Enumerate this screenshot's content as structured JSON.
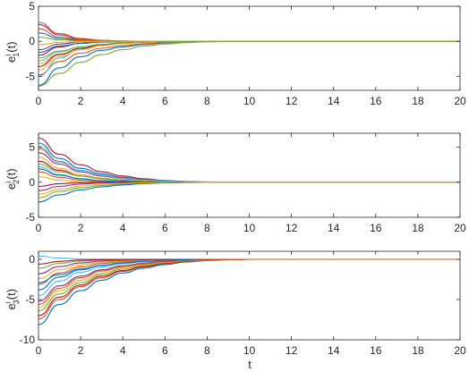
{
  "chart_data": [
    {
      "type": "line",
      "ylabel": {
        "base": "e",
        "sup": "i",
        "sub": "1",
        "arg": "(t)"
      },
      "xlim": [
        0,
        20
      ],
      "ylim": [
        -7,
        5
      ],
      "xticks": [
        "0",
        "2",
        "4",
        "6",
        "8",
        "10",
        "12",
        "14",
        "16",
        "18",
        "20"
      ],
      "yticks": [
        {
          "v": -5,
          "label": "-5"
        },
        {
          "v": 0,
          "label": "0"
        },
        {
          "v": 5,
          "label": "5"
        }
      ],
      "series": [
        {
          "color": "#0072BD",
          "values": [
            -6.3,
            -3.8,
            -2.2,
            -1.3,
            -0.8,
            -0.45,
            -0.25,
            -0.12,
            -0.05,
            -0.02,
            0,
            0
          ]
        },
        {
          "color": "#D95319",
          "values": [
            -4.8,
            -2.9,
            -1.7,
            -1.0,
            -0.6,
            -0.35,
            -0.2,
            -0.1,
            -0.04,
            -0.01,
            0,
            0
          ]
        },
        {
          "color": "#EDB120",
          "values": [
            -3.2,
            -1.8,
            -1.0,
            -0.55,
            -0.3,
            -0.15,
            -0.07,
            -0.03,
            -0.01,
            0,
            0,
            0
          ]
        },
        {
          "color": "#7E2F8E",
          "values": [
            2.4,
            0.9,
            0.3,
            0.1,
            0.03,
            0.01,
            0,
            0,
            0,
            0,
            0,
            0
          ]
        },
        {
          "color": "#77AC30",
          "values": [
            -6.4,
            -4.6,
            -3.0,
            -1.9,
            -1.2,
            -0.7,
            -0.4,
            -0.2,
            -0.08,
            -0.03,
            0,
            0
          ]
        },
        {
          "color": "#4DBEEE",
          "values": [
            -5.0,
            -2.4,
            -1.1,
            -0.5,
            -0.2,
            -0.08,
            -0.03,
            -0.01,
            0,
            0,
            0,
            0
          ]
        },
        {
          "color": "#A2142F",
          "values": [
            -2.0,
            -0.8,
            -0.3,
            -0.1,
            -0.03,
            -0.01,
            0,
            0,
            0,
            0,
            0,
            0
          ]
        },
        {
          "color": "#0072BD",
          "values": [
            1.2,
            0.4,
            0.1,
            0.03,
            0.01,
            0,
            0,
            0,
            0,
            0,
            0,
            0
          ]
        },
        {
          "color": "#D95319",
          "values": [
            2.7,
            1.1,
            0.4,
            0.15,
            0.05,
            0.02,
            0,
            0,
            0,
            0,
            0,
            0
          ]
        },
        {
          "color": "#EDB120",
          "values": [
            -4.1,
            -2.2,
            -1.2,
            -0.6,
            -0.3,
            -0.15,
            -0.07,
            -0.03,
            -0.01,
            0,
            0,
            0
          ]
        },
        {
          "color": "#7E2F8E",
          "values": [
            -1.2,
            -0.4,
            -0.1,
            -0.03,
            0,
            0,
            0,
            0,
            0,
            0,
            0,
            0
          ]
        },
        {
          "color": "#77AC30",
          "values": [
            0.6,
            0.2,
            0.05,
            0.01,
            0,
            0,
            0,
            0,
            0,
            0,
            0,
            0
          ]
        },
        {
          "color": "#4DBEEE",
          "values": [
            -2.8,
            -1.5,
            -0.8,
            -0.4,
            -0.2,
            -0.1,
            -0.05,
            -0.02,
            0,
            0,
            0,
            0
          ]
        },
        {
          "color": "#A2142F",
          "values": [
            -3.6,
            -1.9,
            -1.0,
            -0.5,
            -0.25,
            -0.12,
            -0.05,
            -0.02,
            0,
            0,
            0,
            0
          ]
        },
        {
          "color": "#0072BD",
          "values": [
            -1.6,
            -0.7,
            -0.3,
            -0.1,
            -0.04,
            -0.01,
            0,
            0,
            0,
            0,
            0,
            0
          ]
        },
        {
          "color": "#D95319",
          "values": [
            1.8,
            0.6,
            0.2,
            0.06,
            0.02,
            0,
            0,
            0,
            0,
            0,
            0,
            0
          ]
        },
        {
          "color": "#EDB120",
          "values": [
            -0.5,
            -0.15,
            -0.05,
            -0.01,
            0,
            0,
            0,
            0,
            0,
            0,
            0,
            0
          ]
        },
        {
          "color": "#77AC30",
          "values": [
            -2.4,
            -1.4,
            -0.8,
            -0.45,
            -0.25,
            -0.13,
            -0.06,
            -0.03,
            -0.01,
            0,
            0,
            0
          ]
        }
      ]
    },
    {
      "type": "line",
      "ylabel": {
        "base": "e",
        "sup": "i",
        "sub": "2",
        "arg": "(t)"
      },
      "xlim": [
        0,
        20
      ],
      "ylim": [
        -5,
        7
      ],
      "xticks": [
        "0",
        "2",
        "4",
        "6",
        "8",
        "10",
        "12",
        "14",
        "16",
        "18",
        "20"
      ],
      "yticks": [
        {
          "v": -5,
          "label": "-5"
        },
        {
          "v": 0,
          "label": "0"
        },
        {
          "v": 5,
          "label": "5"
        }
      ],
      "series": [
        {
          "color": "#A2142F",
          "values": [
            6.3,
            4.0,
            2.5,
            1.5,
            0.9,
            0.5,
            0.25,
            0.12,
            0.05,
            0.02,
            0,
            0
          ]
        },
        {
          "color": "#0072BD",
          "values": [
            5.6,
            3.4,
            2.0,
            1.2,
            0.7,
            0.4,
            0.2,
            0.1,
            0.04,
            0.01,
            0,
            0
          ]
        },
        {
          "color": "#D95319",
          "values": [
            4.8,
            2.9,
            1.7,
            1.0,
            0.6,
            0.35,
            0.18,
            0.08,
            0.03,
            0.01,
            0,
            0
          ]
        },
        {
          "color": "#EDB120",
          "values": [
            3.6,
            2.0,
            1.1,
            0.6,
            0.3,
            0.15,
            0.07,
            0.03,
            0.01,
            0,
            0,
            0
          ]
        },
        {
          "color": "#7E2F8E",
          "values": [
            4.2,
            2.6,
            1.5,
            0.9,
            0.5,
            0.28,
            0.14,
            0.06,
            0.02,
            0,
            0,
            0
          ]
        },
        {
          "color": "#77AC30",
          "values": [
            -2.2,
            -1.3,
            -0.8,
            -0.45,
            -0.25,
            -0.13,
            -0.06,
            -0.03,
            -0.01,
            0,
            0,
            0
          ]
        },
        {
          "color": "#4DBEEE",
          "values": [
            2.2,
            1.1,
            0.5,
            0.25,
            0.1,
            0.04,
            0.01,
            0,
            0,
            0,
            0,
            0
          ]
        },
        {
          "color": "#A2142F",
          "values": [
            3.0,
            1.7,
            0.9,
            0.5,
            0.25,
            0.12,
            0.05,
            0.02,
            0,
            0,
            0,
            0
          ]
        },
        {
          "color": "#0072BD",
          "values": [
            -2.8,
            -1.8,
            -1.1,
            -0.65,
            -0.38,
            -0.2,
            -0.1,
            -0.05,
            -0.02,
            0,
            0,
            0
          ]
        },
        {
          "color": "#D95319",
          "values": [
            1.5,
            0.7,
            0.3,
            0.12,
            0.05,
            0.02,
            0,
            0,
            0,
            0,
            0,
            0
          ]
        },
        {
          "color": "#EDB120",
          "values": [
            0.8,
            0.3,
            0.1,
            0.03,
            0.01,
            0,
            0,
            0,
            0,
            0,
            0,
            0
          ]
        },
        {
          "color": "#7E2F8E",
          "values": [
            -1.2,
            -0.6,
            -0.25,
            -0.1,
            -0.04,
            -0.01,
            0,
            0,
            0,
            0,
            0,
            0
          ]
        },
        {
          "color": "#77AC30",
          "values": [
            2.6,
            1.5,
            0.9,
            0.5,
            0.28,
            0.14,
            0.07,
            0.03,
            0.01,
            0,
            0,
            0
          ]
        },
        {
          "color": "#4DBEEE",
          "values": [
            5.1,
            3.0,
            1.7,
            1.0,
            0.55,
            0.3,
            0.15,
            0.07,
            0.02,
            0,
            0,
            0
          ]
        },
        {
          "color": "#A2142F",
          "values": [
            -0.6,
            -0.2,
            -0.05,
            -0.01,
            0,
            0,
            0,
            0,
            0,
            0,
            0,
            0
          ]
        },
        {
          "color": "#0072BD",
          "values": [
            1.9,
            1.0,
            0.5,
            0.22,
            0.1,
            0.04,
            0.01,
            0,
            0,
            0,
            0,
            0
          ]
        },
        {
          "color": "#EDB120",
          "values": [
            -1.7,
            -1.0,
            -0.55,
            -0.3,
            -0.15,
            -0.07,
            -0.03,
            -0.01,
            0,
            0,
            0,
            0
          ]
        }
      ]
    },
    {
      "type": "line",
      "ylabel": {
        "base": "e",
        "sup": "i",
        "sub": "3",
        "arg": "(t)"
      },
      "xlim": [
        0,
        20
      ],
      "ylim": [
        -10,
        1
      ],
      "xticks": [
        "0",
        "2",
        "4",
        "6",
        "8",
        "10",
        "12",
        "14",
        "16",
        "18",
        "20"
      ],
      "yticks": [
        {
          "v": -10,
          "label": "-10"
        },
        {
          "v": -5,
          "label": "-5"
        },
        {
          "v": 0,
          "label": "0"
        }
      ],
      "series": [
        {
          "color": "#0072BD",
          "values": [
            -8.1,
            -5.6,
            -3.9,
            -2.6,
            -1.7,
            -1.1,
            -0.65,
            -0.35,
            -0.15,
            -0.05,
            0,
            0
          ]
        },
        {
          "color": "#D95319",
          "values": [
            -7.4,
            -5.0,
            -3.4,
            -2.3,
            -1.5,
            -0.95,
            -0.55,
            -0.3,
            -0.12,
            -0.04,
            0,
            0
          ]
        },
        {
          "color": "#A2142F",
          "values": [
            -7.0,
            -4.7,
            -3.2,
            -2.1,
            -1.4,
            -0.9,
            -0.5,
            -0.27,
            -0.11,
            -0.03,
            0,
            0
          ]
        },
        {
          "color": "#77AC30",
          "values": [
            -6.4,
            -4.3,
            -2.9,
            -1.9,
            -1.2,
            -0.75,
            -0.42,
            -0.22,
            -0.09,
            -0.03,
            0,
            0
          ]
        },
        {
          "color": "#EDB120",
          "values": [
            -6.0,
            -3.9,
            -2.6,
            -1.7,
            -1.05,
            -0.65,
            -0.36,
            -0.18,
            -0.07,
            -0.02,
            0,
            0
          ]
        },
        {
          "color": "#7E2F8E",
          "values": [
            -5.2,
            -3.3,
            -2.1,
            -1.3,
            -0.8,
            -0.48,
            -0.26,
            -0.13,
            -0.05,
            -0.01,
            0,
            0
          ]
        },
        {
          "color": "#4DBEEE",
          "values": [
            -4.5,
            -2.7,
            -1.6,
            -0.95,
            -0.55,
            -0.3,
            -0.15,
            -0.07,
            -0.02,
            0,
            0,
            0
          ]
        },
        {
          "color": "#0072BD",
          "values": [
            -3.8,
            -2.2,
            -1.3,
            -0.75,
            -0.42,
            -0.22,
            -0.1,
            -0.04,
            -0.01,
            0,
            0,
            0
          ]
        },
        {
          "color": "#D95319",
          "values": [
            -3.1,
            -1.7,
            -0.95,
            -0.52,
            -0.28,
            -0.14,
            -0.06,
            -0.02,
            0,
            0,
            0,
            0
          ]
        },
        {
          "color": "#EDB120",
          "values": [
            -2.4,
            -1.3,
            -0.7,
            -0.38,
            -0.2,
            -0.1,
            -0.04,
            -0.01,
            0,
            0,
            0,
            0
          ]
        },
        {
          "color": "#7E2F8E",
          "values": [
            -1.8,
            -0.9,
            -0.45,
            -0.22,
            -0.1,
            -0.04,
            -0.01,
            0,
            0,
            0,
            0,
            0
          ]
        },
        {
          "color": "#77AC30",
          "values": [
            -1.1,
            -0.5,
            -0.22,
            -0.09,
            -0.03,
            -0.01,
            0,
            0,
            0,
            0,
            0,
            0
          ]
        },
        {
          "color": "#4DBEEE",
          "values": [
            0.4,
            0.15,
            0.05,
            0.01,
            0,
            0,
            0,
            0,
            0,
            0,
            0,
            0
          ]
        },
        {
          "color": "#A2142F",
          "values": [
            -0.6,
            -0.25,
            -0.1,
            -0.03,
            -0.01,
            0,
            0,
            0,
            0,
            0,
            0,
            0
          ]
        },
        {
          "color": "#0072BD",
          "values": [
            -2.9,
            -1.9,
            -1.2,
            -0.75,
            -0.45,
            -0.25,
            -0.12,
            -0.05,
            -0.02,
            0,
            0,
            0
          ]
        },
        {
          "color": "#D95319",
          "values": [
            -5.6,
            -3.6,
            -2.3,
            -1.45,
            -0.9,
            -0.55,
            -0.3,
            -0.15,
            -0.06,
            -0.02,
            0,
            0
          ]
        }
      ]
    }
  ],
  "x_sample_points": [
    0,
    1,
    2,
    3,
    4,
    5,
    6,
    7,
    8,
    9,
    10,
    20
  ],
  "xlabel": "t"
}
